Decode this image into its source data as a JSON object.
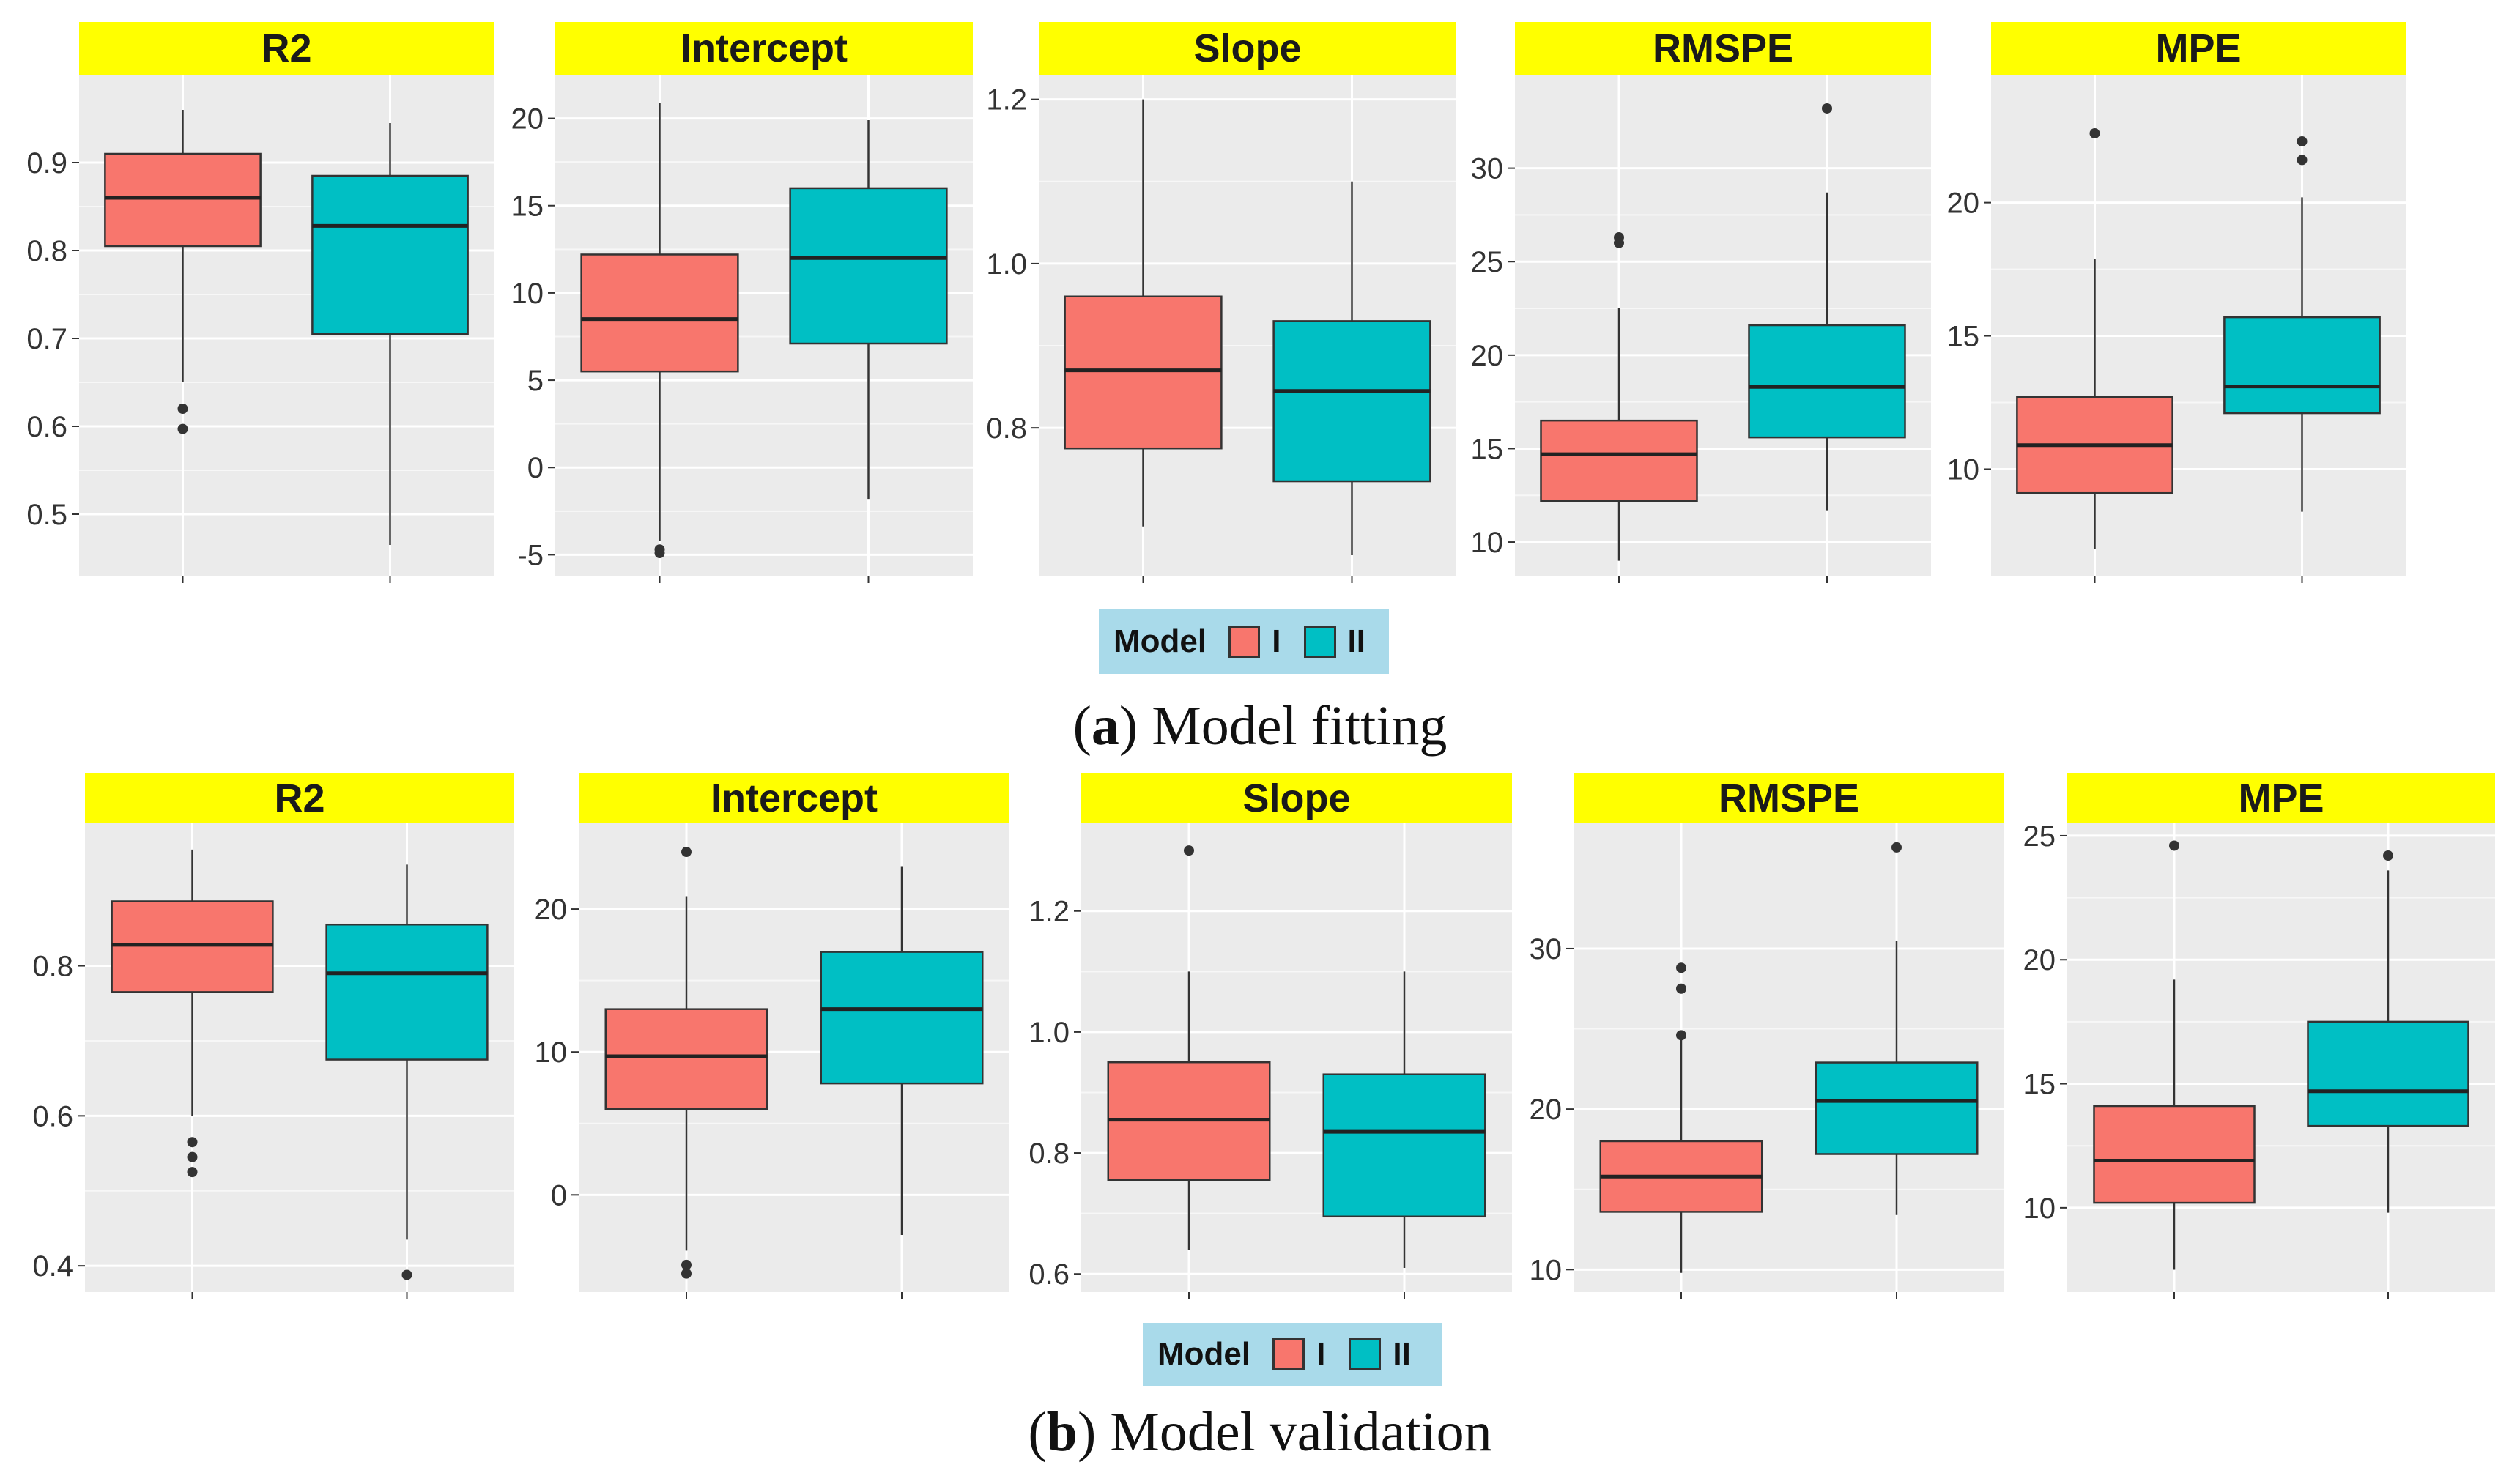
{
  "colors": {
    "model_I": "#f8766d",
    "model_II": "#00bfc4",
    "strip": "#ffff00",
    "legend_bg": "#a9daea"
  },
  "legend": {
    "title": "Model",
    "items": [
      "I",
      "II"
    ]
  },
  "captions": {
    "a": {
      "letter": "a",
      "text": "Model fitting"
    },
    "b": {
      "letter": "b",
      "text": "Model validation"
    }
  },
  "chart_data": [
    {
      "type": "box",
      "group": "a",
      "title": "R2",
      "ylim": [
        0.43,
        1.0
      ],
      "yticks": [
        0.5,
        0.6,
        0.7,
        0.8,
        0.9
      ],
      "tick_labels": [
        "0.5",
        "0.6",
        "0.7",
        "0.8",
        "0.9"
      ],
      "series": [
        {
          "name": "I",
          "min": 0.65,
          "q1": 0.805,
          "median": 0.86,
          "q3": 0.91,
          "max": 0.96,
          "outliers": [
            0.62,
            0.597
          ]
        },
        {
          "name": "II",
          "min": 0.465,
          "q1": 0.705,
          "median": 0.828,
          "q3": 0.885,
          "max": 0.945,
          "outliers": []
        }
      ]
    },
    {
      "type": "box",
      "group": "a",
      "title": "Intercept",
      "ylim": [
        -6.2,
        22.5
      ],
      "yticks": [
        -5,
        0,
        5,
        10,
        15,
        20
      ],
      "tick_labels": [
        "-5",
        "0",
        "5",
        "10",
        "15",
        "20"
      ],
      "series": [
        {
          "name": "I",
          "min": -4.2,
          "q1": 5.5,
          "median": 8.5,
          "q3": 12.2,
          "max": 20.9,
          "outliers": [
            -4.7,
            -4.9
          ]
        },
        {
          "name": "II",
          "min": -1.8,
          "q1": 7.1,
          "median": 12.0,
          "q3": 16.0,
          "max": 19.9,
          "outliers": []
        }
      ]
    },
    {
      "type": "box",
      "group": "a",
      "title": "Slope",
      "ylim": [
        0.62,
        1.23
      ],
      "yticks": [
        0.8,
        1.0,
        1.2
      ],
      "tick_labels": [
        "0.8",
        "1.0",
        "1.2"
      ],
      "series": [
        {
          "name": "I",
          "min": 0.68,
          "q1": 0.775,
          "median": 0.87,
          "q3": 0.96,
          "max": 1.2,
          "outliers": []
        },
        {
          "name": "II",
          "min": 0.645,
          "q1": 0.735,
          "median": 0.845,
          "q3": 0.93,
          "max": 1.1,
          "outliers": []
        }
      ]
    },
    {
      "type": "box",
      "group": "a",
      "title": "RMSPE",
      "ylim": [
        8.2,
        35.0
      ],
      "yticks": [
        10,
        15,
        20,
        25,
        30
      ],
      "tick_labels": [
        "10",
        "15",
        "20",
        "25",
        "30"
      ],
      "series": [
        {
          "name": "I",
          "min": 9.0,
          "q1": 12.2,
          "median": 14.7,
          "q3": 16.5,
          "max": 22.5,
          "outliers": [
            26.3,
            26.0
          ]
        },
        {
          "name": "II",
          "min": 11.7,
          "q1": 15.6,
          "median": 18.3,
          "q3": 21.6,
          "max": 28.7,
          "outliers": [
            33.2
          ]
        }
      ]
    },
    {
      "type": "box",
      "group": "a",
      "title": "MPE",
      "ylim": [
        6.0,
        24.8
      ],
      "yticks": [
        10,
        15,
        20
      ],
      "tick_labels": [
        "10",
        "15",
        "20"
      ],
      "series": [
        {
          "name": "I",
          "min": 7.0,
          "q1": 9.1,
          "median": 10.9,
          "q3": 12.7,
          "max": 17.9,
          "outliers": [
            22.6
          ]
        },
        {
          "name": "II",
          "min": 8.4,
          "q1": 12.1,
          "median": 13.1,
          "q3": 15.7,
          "max": 20.2,
          "outliers": [
            22.3,
            21.6
          ]
        }
      ]
    },
    {
      "type": "box",
      "group": "b",
      "title": "R2",
      "ylim": [
        0.365,
        0.99
      ],
      "yticks": [
        0.4,
        0.6,
        0.8
      ],
      "tick_labels": [
        "0.4",
        "0.6",
        "0.8"
      ],
      "series": [
        {
          "name": "I",
          "min": 0.6,
          "q1": 0.765,
          "median": 0.828,
          "q3": 0.886,
          "max": 0.955,
          "outliers": [
            0.565,
            0.545,
            0.525
          ]
        },
        {
          "name": "II",
          "min": 0.435,
          "q1": 0.675,
          "median": 0.79,
          "q3": 0.855,
          "max": 0.935,
          "outliers": [
            0.388
          ]
        }
      ]
    },
    {
      "type": "box",
      "group": "b",
      "title": "Intercept",
      "ylim": [
        -6.8,
        26.0
      ],
      "yticks": [
        0,
        10,
        20
      ],
      "tick_labels": [
        "0",
        "10",
        "20"
      ],
      "series": [
        {
          "name": "I",
          "min": -3.9,
          "q1": 6.0,
          "median": 9.7,
          "q3": 13.0,
          "max": 20.9,
          "outliers": [
            24.0,
            -4.9,
            -5.5
          ]
        },
        {
          "name": "II",
          "min": -2.8,
          "q1": 7.8,
          "median": 13.0,
          "q3": 17.0,
          "max": 23.0,
          "outliers": []
        }
      ]
    },
    {
      "type": "box",
      "group": "b",
      "title": "Slope",
      "ylim": [
        0.57,
        1.345
      ],
      "yticks": [
        0.6,
        0.8,
        1.0,
        1.2
      ],
      "tick_labels": [
        "0.6",
        "0.8",
        "1.0",
        "1.2"
      ],
      "series": [
        {
          "name": "I",
          "min": 0.64,
          "q1": 0.755,
          "median": 0.855,
          "q3": 0.95,
          "max": 1.1,
          "outliers": [
            1.3
          ]
        },
        {
          "name": "II",
          "min": 0.61,
          "q1": 0.695,
          "median": 0.835,
          "q3": 0.93,
          "max": 1.1,
          "outliers": []
        }
      ]
    },
    {
      "type": "box",
      "group": "b",
      "title": "RMSPE",
      "ylim": [
        8.6,
        37.8
      ],
      "yticks": [
        10,
        20,
        30
      ],
      "tick_labels": [
        "10",
        "20",
        "30"
      ],
      "series": [
        {
          "name": "I",
          "min": 9.8,
          "q1": 13.6,
          "median": 15.8,
          "q3": 18.0,
          "max": 24.5,
          "outliers": [
            28.8,
            27.5,
            24.6
          ]
        },
        {
          "name": "II",
          "min": 13.4,
          "q1": 17.2,
          "median": 20.5,
          "q3": 22.9,
          "max": 30.5,
          "outliers": [
            36.3
          ]
        }
      ]
    },
    {
      "type": "box",
      "group": "b",
      "title": "MPE",
      "ylim": [
        6.6,
        25.5
      ],
      "yticks": [
        10,
        15,
        20,
        25
      ],
      "tick_labels": [
        "10",
        "15",
        "20",
        "25"
      ],
      "series": [
        {
          "name": "I",
          "min": 7.5,
          "q1": 10.2,
          "median": 11.9,
          "q3": 14.1,
          "max": 19.2,
          "outliers": [
            24.6
          ]
        },
        {
          "name": "II",
          "min": 9.8,
          "q1": 13.3,
          "median": 14.7,
          "q3": 17.5,
          "max": 23.6,
          "outliers": [
            24.2
          ]
        }
      ]
    }
  ]
}
